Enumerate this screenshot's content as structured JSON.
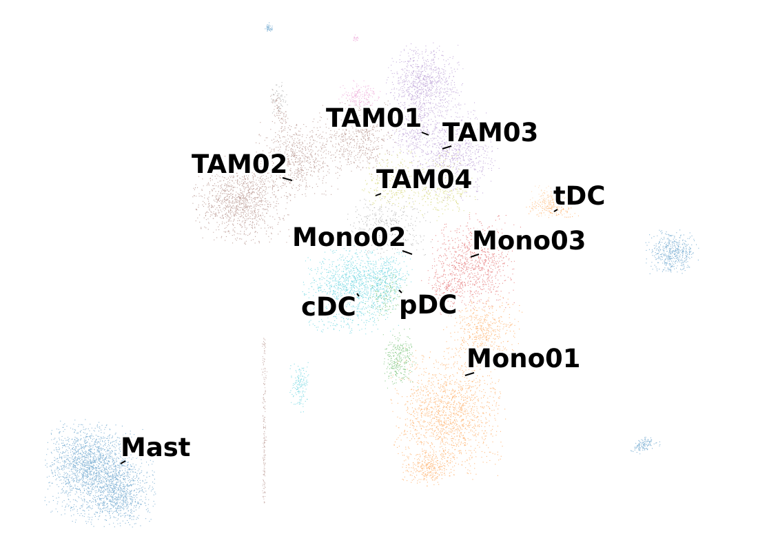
{
  "chart_data": {
    "type": "scatter",
    "title": "",
    "xlabel": "",
    "ylabel": "",
    "axes_visible": false,
    "grid": false,
    "legend": "on data",
    "clusters": [
      {
        "name": "Mast",
        "color": "#1f77b4"
      },
      {
        "name": "Mono01",
        "color": "#ff7f0e"
      },
      {
        "name": "pDC",
        "color": "#2ca02c"
      },
      {
        "name": "Mono03",
        "color": "#d62728"
      },
      {
        "name": "TAM03",
        "color": "#9467bd"
      },
      {
        "name": "TAM02",
        "color": "#8c564b"
      },
      {
        "name": "TAM01",
        "color": "#e377c2"
      },
      {
        "name": "TAM04",
        "color": "#bcbd22"
      },
      {
        "name": "cDC",
        "color": "#17becf"
      },
      {
        "name": "Mono02",
        "color": "#7f7f7f"
      },
      {
        "name": "tDC",
        "color": "#ffbb78"
      }
    ]
  }
}
